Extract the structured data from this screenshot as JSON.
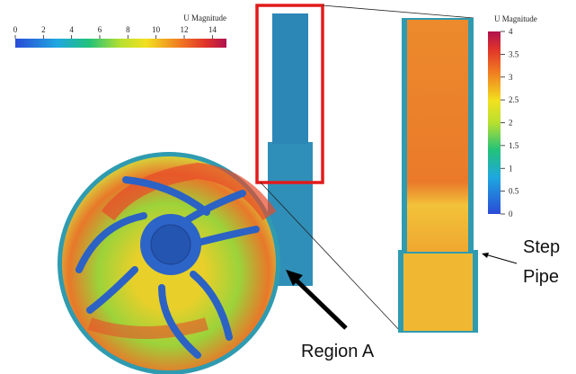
{
  "colorbars": [
    {
      "title": "U Magnitude",
      "orientation": "horizontal",
      "range": [
        0,
        15
      ],
      "ticks": [
        0,
        2,
        4,
        6,
        8,
        10,
        12,
        14
      ]
    },
    {
      "title": "U Magnitude",
      "orientation": "vertical",
      "range": [
        0,
        4
      ],
      "ticks": [
        0,
        0.5,
        1,
        1.5,
        2,
        2.5,
        3,
        3.5,
        4
      ]
    }
  ],
  "annotations": {
    "step_pipe": [
      "Step",
      "Pipe"
    ],
    "region_a": "Region A"
  }
}
